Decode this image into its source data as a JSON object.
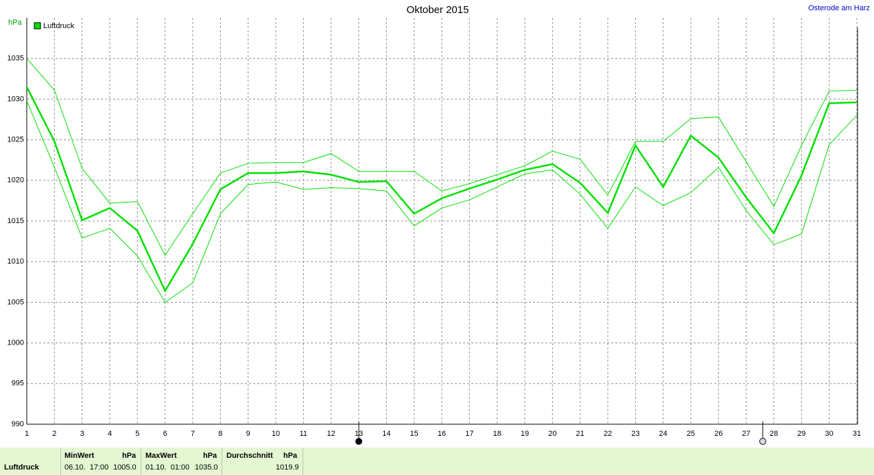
{
  "chart_data": {
    "type": "line",
    "title": "Oktober 2015",
    "location": "Osterode am Harz",
    "y_label": "hPa",
    "x": [
      1,
      2,
      3,
      4,
      5,
      6,
      7,
      8,
      9,
      10,
      11,
      12,
      13,
      14,
      15,
      16,
      17,
      18,
      19,
      20,
      21,
      22,
      23,
      24,
      25,
      26,
      27,
      28,
      29,
      30,
      31
    ],
    "xlim": [
      1,
      31
    ],
    "xticks": [
      1,
      2,
      3,
      4,
      5,
      6,
      7,
      8,
      9,
      10,
      11,
      12,
      13,
      14,
      15,
      16,
      17,
      18,
      19,
      20,
      21,
      22,
      23,
      24,
      25,
      26,
      27,
      28,
      29,
      30,
      31
    ],
    "ylim": [
      990,
      1040
    ],
    "yticks": [
      990,
      995,
      1000,
      1005,
      1010,
      1015,
      1020,
      1025,
      1030,
      1035
    ],
    "grid": true,
    "series": [
      {
        "name": "Luftdruck",
        "color": "#00e000",
        "values": [
          1031.5,
          1024.8,
          1015.1,
          1016.6,
          1013.8,
          1006.4,
          1012.2,
          1018.9,
          1020.9,
          1020.9,
          1021.1,
          1020.7,
          1019.8,
          1019.9,
          1015.9,
          1017.8,
          1019.0,
          1020.1,
          1021.3,
          1022.0,
          1019.7,
          1016.0,
          1024.3,
          1019.2,
          1025.5,
          1022.8,
          1017.9,
          1013.5,
          1020.6,
          1029.5,
          1029.6
        ],
        "upper": [
          1035.0,
          1031.1,
          1021.5,
          1017.2,
          1017.4,
          1010.8,
          1015.9,
          1020.9,
          1022.1,
          1022.2,
          1022.2,
          1023.3,
          1021.1,
          1021.1,
          1021.1,
          1018.7,
          1019.6,
          1020.7,
          1021.8,
          1023.6,
          1022.6,
          1018.2,
          1024.8,
          1024.8,
          1027.6,
          1027.8,
          1022.3,
          1016.8,
          1024.3,
          1031.0,
          1031.1
        ],
        "lower": [
          1029.8,
          1021.6,
          1012.9,
          1014.1,
          1010.7,
          1005.0,
          1007.4,
          1015.9,
          1019.5,
          1019.8,
          1018.9,
          1019.1,
          1019.0,
          1018.7,
          1014.4,
          1016.6,
          1017.6,
          1019.2,
          1020.8,
          1021.3,
          1018.3,
          1014.1,
          1019.2,
          1016.9,
          1018.5,
          1021.6,
          1016.3,
          1012.1,
          1013.4,
          1024.4,
          1028.0
        ]
      }
    ],
    "markers": [
      {
        "x": 13,
        "filled": true
      },
      {
        "x": 27.6,
        "filled": false
      }
    ]
  },
  "summary": {
    "row_label": "Luftdruck",
    "min": {
      "header": "MinWert",
      "unit": "hPa",
      "time": "06.10.  17:00",
      "value": "1005.0"
    },
    "max": {
      "header": "MaxWert",
      "unit": "hPa",
      "time": "01.10.  01:00",
      "value": "1035.0"
    },
    "avg": {
      "header": "Durchschnitt",
      "unit": "hPa",
      "value": "1019.9"
    }
  }
}
